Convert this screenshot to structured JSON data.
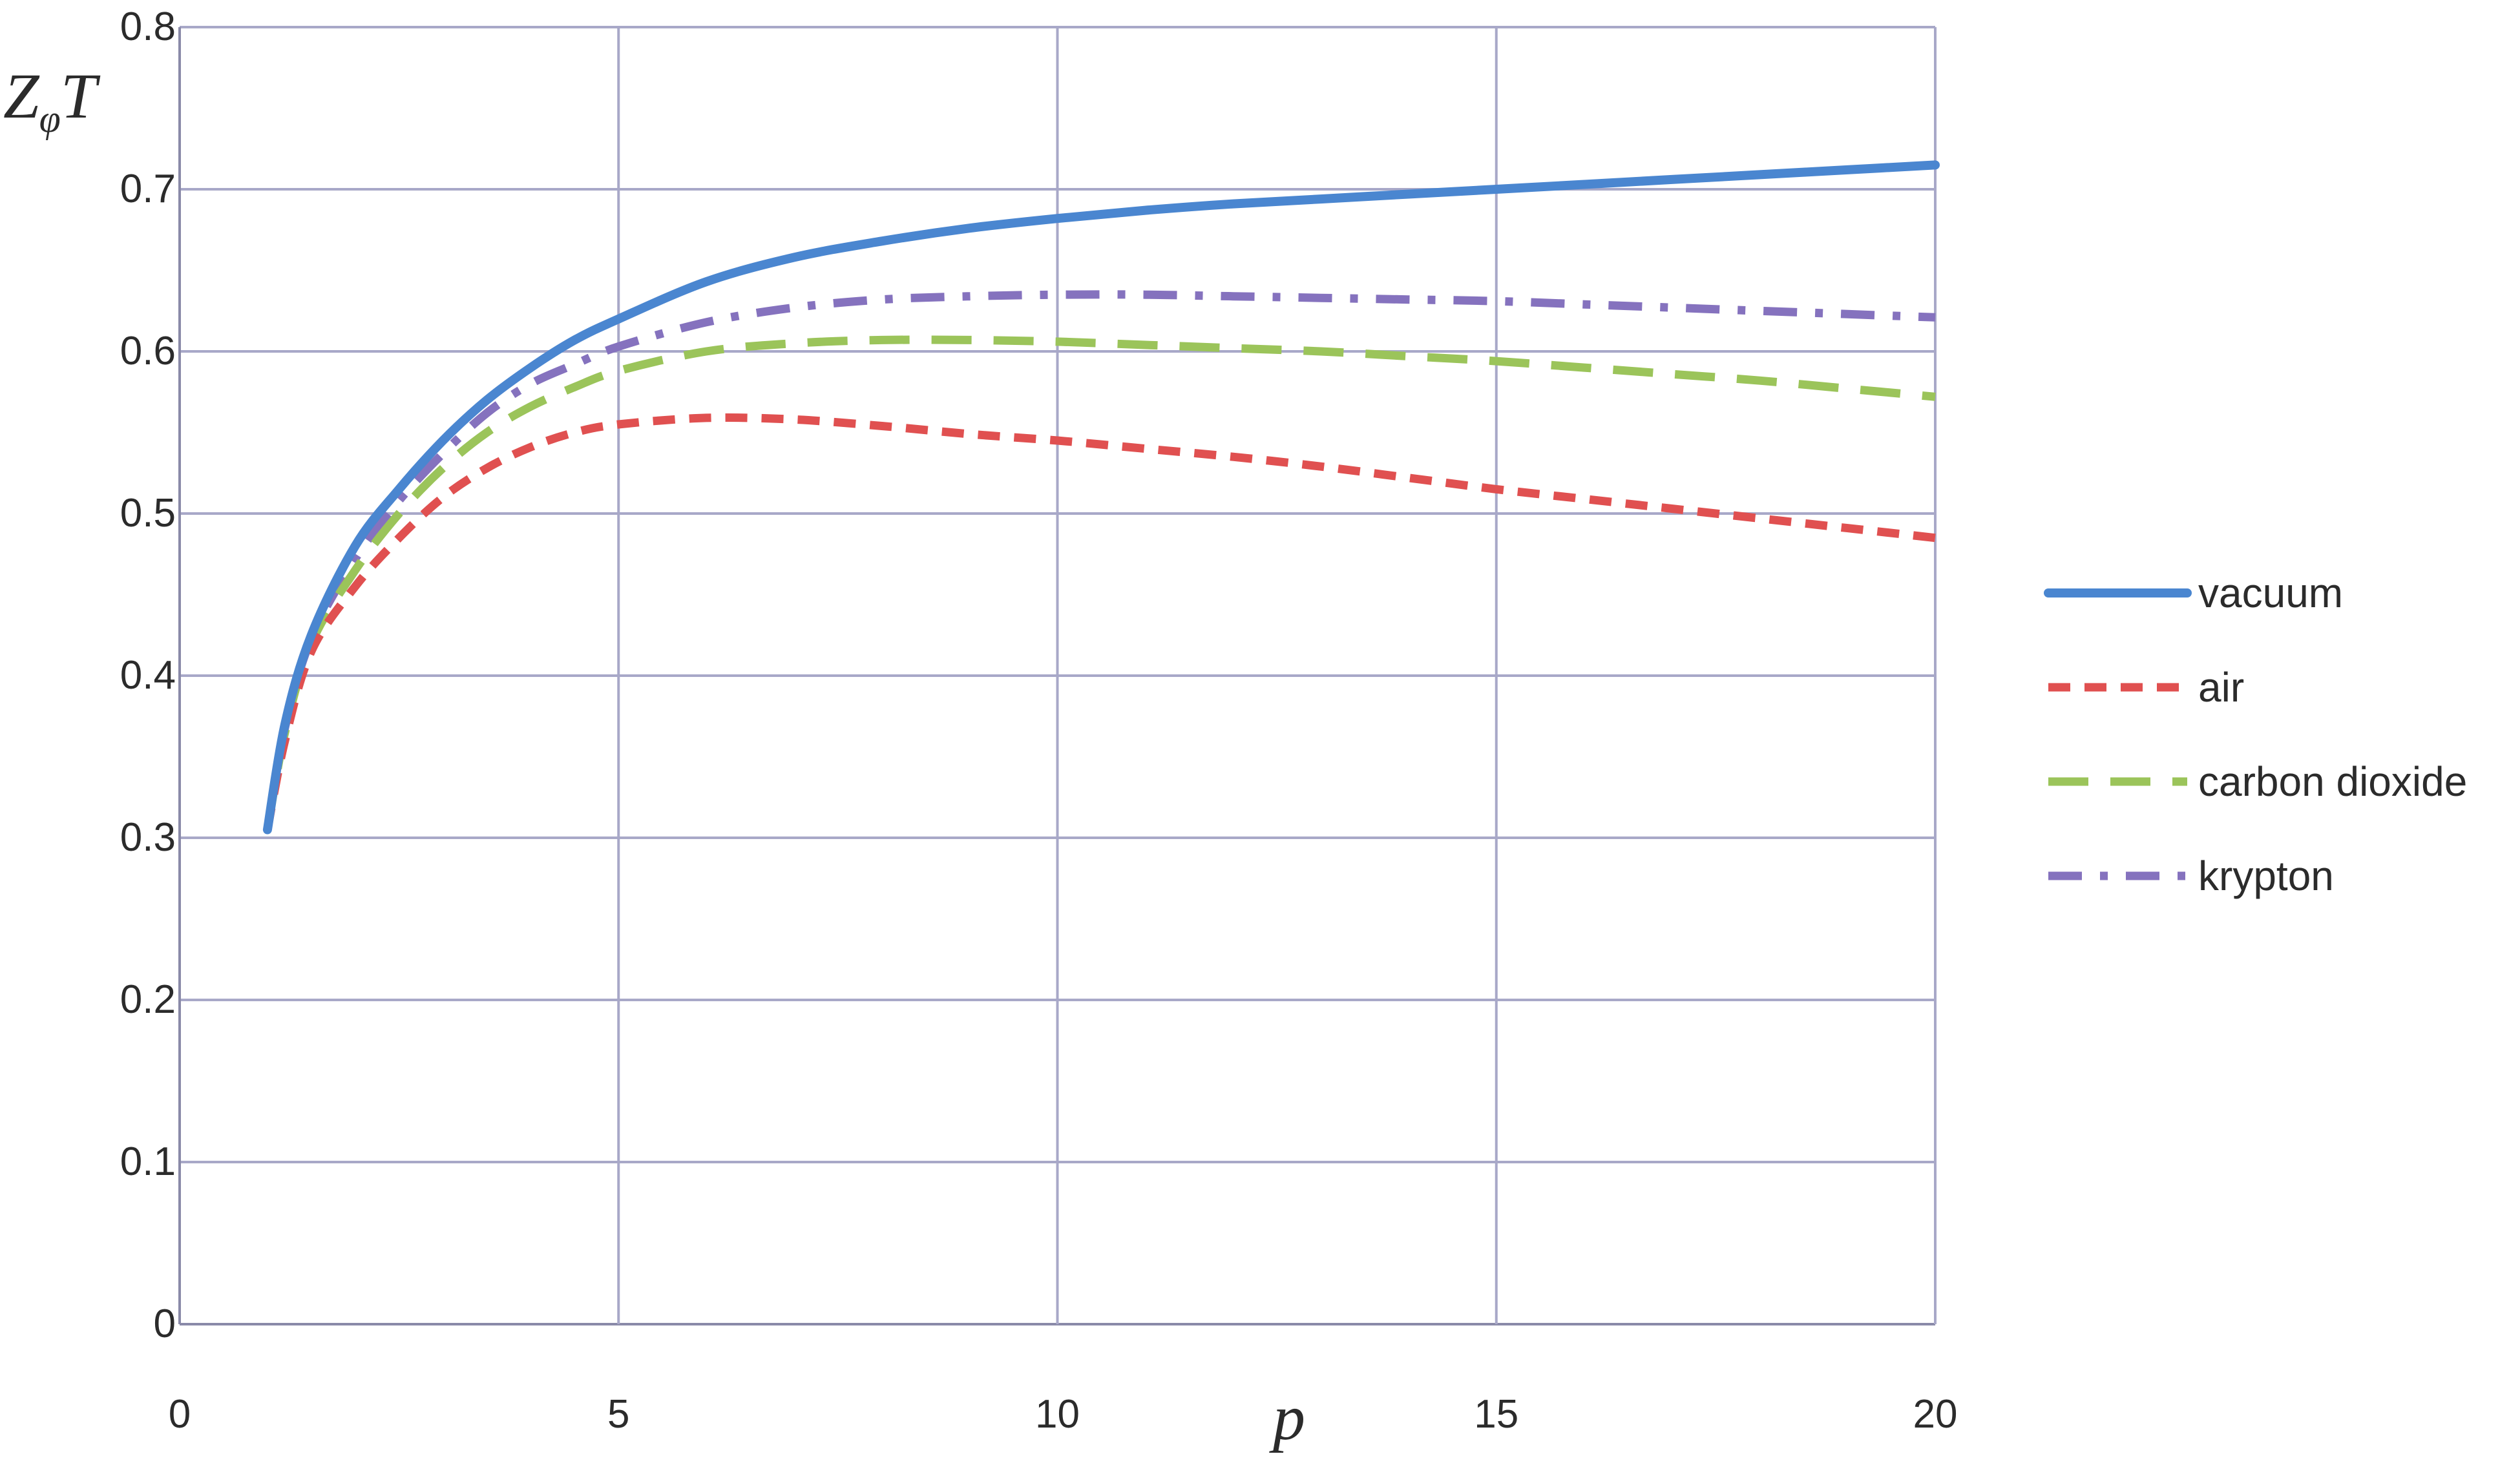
{
  "chart_data": {
    "type": "line",
    "title": "",
    "xlabel": "p",
    "ylabel": "Z",
    "ylabel_sub": "φ",
    "ylabel_tail": "T",
    "xlim": [
      0,
      20
    ],
    "ylim": [
      0,
      0.8
    ],
    "x_ticks": [
      0,
      5,
      10,
      15,
      20
    ],
    "y_ticks": [
      0,
      0.1,
      0.2,
      0.3,
      0.4,
      0.5,
      0.6,
      0.7,
      0.8
    ],
    "x_tick_labels": [
      "0",
      "5",
      "10",
      "15",
      "20"
    ],
    "y_tick_labels": [
      "0",
      "0.1",
      "0.2",
      "0.3",
      "0.4",
      "0.5",
      "0.6",
      "0.7",
      "0.8"
    ],
    "grid": true,
    "legend_position": "right",
    "x": [
      1,
      1.2,
      1.5,
      2,
      2.5,
      3,
      3.5,
      4,
      4.5,
      5,
      6,
      7,
      8,
      9,
      10,
      11,
      12,
      13,
      14,
      15,
      16,
      17,
      18,
      19,
      20
    ],
    "series": [
      {
        "name": "vacuum",
        "color": "#4a86d0",
        "dash": "solid",
        "values": [
          0.305,
          0.37,
          0.425,
          0.48,
          0.515,
          0.545,
          0.57,
          0.59,
          0.607,
          0.62,
          0.643,
          0.658,
          0.668,
          0.676,
          0.682,
          0.687,
          0.691,
          0.694,
          0.697,
          0.7,
          0.703,
          0.706,
          0.709,
          0.712,
          0.715
        ]
      },
      {
        "name": "air",
        "color": "#e05050",
        "dash": "short-dash",
        "values": [
          0.305,
          0.36,
          0.415,
          0.455,
          0.485,
          0.51,
          0.528,
          0.541,
          0.55,
          0.555,
          0.559,
          0.558,
          0.554,
          0.549,
          0.545,
          0.54,
          0.535,
          0.529,
          0.522,
          0.515,
          0.509,
          0.503,
          0.497,
          0.491,
          0.485
        ]
      },
      {
        "name": "carbon dioxide",
        "color": "#9bc45a",
        "dash": "long-dash",
        "values": [
          0.305,
          0.365,
          0.42,
          0.465,
          0.5,
          0.528,
          0.55,
          0.566,
          0.578,
          0.588,
          0.6,
          0.605,
          0.607,
          0.607,
          0.606,
          0.604,
          0.602,
          0.6,
          0.597,
          0.594,
          0.59,
          0.586,
          0.582,
          0.577,
          0.572
        ]
      },
      {
        "name": "krypton",
        "color": "#8572be",
        "dash": "dash-dot",
        "values": [
          0.305,
          0.368,
          0.423,
          0.472,
          0.508,
          0.537,
          0.562,
          0.58,
          0.592,
          0.603,
          0.618,
          0.627,
          0.632,
          0.634,
          0.635,
          0.635,
          0.634,
          0.633,
          0.632,
          0.631,
          0.629,
          0.627,
          0.625,
          0.623,
          0.621
        ]
      }
    ]
  }
}
